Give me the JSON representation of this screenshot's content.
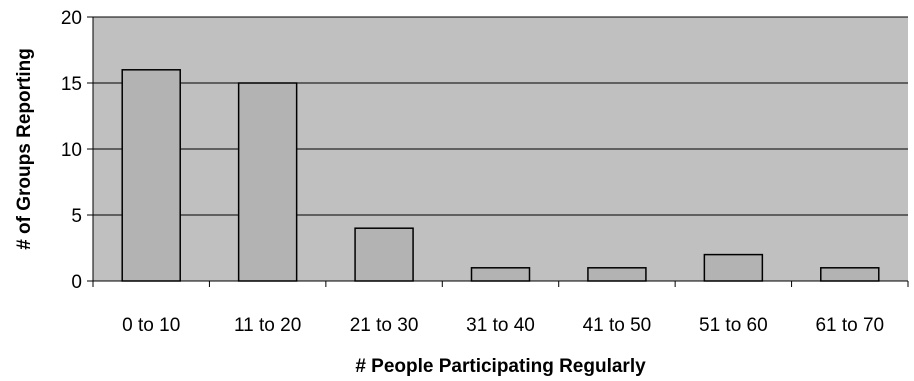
{
  "chart_data": {
    "type": "bar",
    "title": "",
    "xlabel": "# People Participating Regularly",
    "ylabel": "# of Groups Reporting",
    "categories": [
      "0 to 10",
      "11 to 20",
      "21 to 30",
      "31 to 40",
      "41 to 50",
      "51 to 60",
      "61 to 70"
    ],
    "values": [
      16,
      15,
      4,
      1,
      1,
      2,
      1
    ],
    "ylim": [
      0,
      20
    ],
    "yticks": [
      "0",
      "5",
      "10",
      "15",
      "20"
    ],
    "grid": true,
    "legend": "none",
    "colors": {
      "plot_background": "#c0c0c0",
      "bar_fill": "#b3b3b3",
      "bar_stroke": "#000000",
      "gridline": "#000000"
    }
  }
}
